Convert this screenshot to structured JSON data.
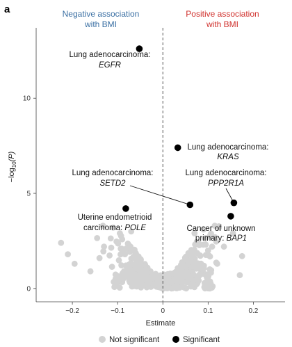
{
  "chart_data": {
    "type": "scatter",
    "panel_label": "a",
    "xlabel": "Estimate",
    "ylabel_prefix": "−log",
    "ylabel_sub": "10",
    "ylabel_suffix": "(P)",
    "xlim": [
      -0.28,
      0.27
    ],
    "ylim": [
      -0.7,
      13.7
    ],
    "xticks": [
      -0.2,
      -0.1,
      0,
      0.1,
      0.2
    ],
    "xtick_labels": [
      "−0.2",
      "−0.1",
      "0",
      "0.1",
      "0.2"
    ],
    "yticks": [
      0,
      5,
      10
    ],
    "ytick_labels": [
      "0",
      "5",
      "10"
    ],
    "reference_line": {
      "x": 0,
      "style": "dashed"
    },
    "headers": {
      "negative": [
        "Negative association",
        "with BMI"
      ],
      "positive": [
        "Positive association",
        "with BMI"
      ]
    },
    "colors": {
      "not_significant": "#d3d3d3",
      "significant": "#000000",
      "negative_header": "#3a6fa3",
      "positive_header": "#d0312d"
    },
    "legend": {
      "placement": "bottom-center",
      "items": [
        {
          "label": "Not significant",
          "color": "#d3d3d3"
        },
        {
          "label": "Significant",
          "color": "#000000"
        }
      ]
    },
    "significant_points": [
      {
        "x": -0.052,
        "y": 12.6,
        "line1": "Lung adenocarcinoma:",
        "line2": "EGFR"
      },
      {
        "x": 0.033,
        "y": 7.4,
        "line1": "Lung adenocarcinoma:",
        "line2": "KRAS"
      },
      {
        "x": 0.06,
        "y": 4.4,
        "line1": "Lung adenocarcinoma:",
        "line2": "SETD2"
      },
      {
        "x": 0.157,
        "y": 4.5,
        "line1": "Lung adenocarcinoma:",
        "line2": "PPP2R1A"
      },
      {
        "x": 0.15,
        "y": 3.8,
        "line1": "Cancer of unknown",
        "line2": "primary: BAP1"
      },
      {
        "x": -0.082,
        "y": 4.2,
        "line1": "Uterine endometrioid",
        "line2": "carcinoma: POLE"
      }
    ]
  }
}
